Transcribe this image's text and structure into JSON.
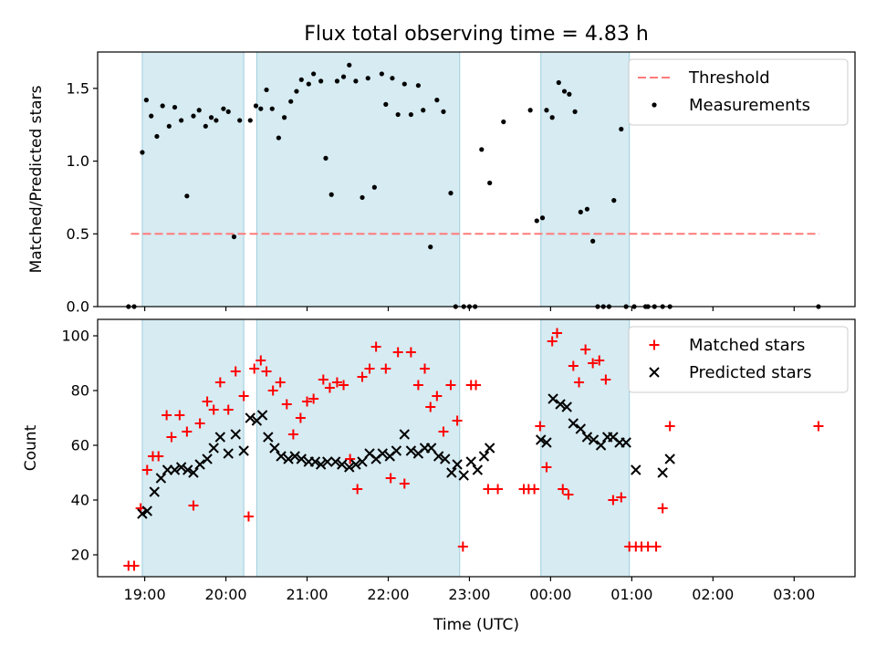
{
  "chart_data": [
    {
      "type": "scatter",
      "title": "Flux total observing time = 4.83 h",
      "xlabel": "",
      "ylabel": "Matched/Predicted stars",
      "xlim": [
        18.42,
        27.75
      ],
      "ylim": [
        0.0,
        1.75
      ],
      "yticks": [
        0.0,
        0.5,
        1.0,
        1.5
      ],
      "ytick_labels": [
        "0.0",
        "0.5",
        "1.0",
        "1.5"
      ],
      "legend_position": "top-right",
      "legend": [
        {
          "label": "Threshold",
          "kind": "dashed-line",
          "color": "#ff7a7a"
        },
        {
          "label": "Measurements",
          "kind": "dot",
          "color": "#000000"
        }
      ],
      "threshold": {
        "name": "Threshold",
        "y": 0.5,
        "x_range": [
          18.83,
          27.31
        ]
      },
      "shaded_spans": [
        [
          18.97,
          20.22
        ],
        [
          20.38,
          22.88
        ],
        [
          23.88,
          24.97
        ]
      ],
      "series": [
        {
          "name": "Measurements",
          "x": [
            18.8,
            18.87,
            18.97,
            19.02,
            19.08,
            19.15,
            19.22,
            19.3,
            19.37,
            19.45,
            19.52,
            19.6,
            19.67,
            19.75,
            19.82,
            19.88,
            19.97,
            20.03,
            20.1,
            20.17,
            20.3,
            20.37,
            20.43,
            20.5,
            20.57,
            20.65,
            20.72,
            20.8,
            20.87,
            20.93,
            21.02,
            21.08,
            21.17,
            21.23,
            21.3,
            21.37,
            21.45,
            21.52,
            21.6,
            21.68,
            21.75,
            21.83,
            21.92,
            21.97,
            22.05,
            22.12,
            22.2,
            22.28,
            22.37,
            22.43,
            22.52,
            22.6,
            22.68,
            22.77,
            22.83,
            22.93,
            23.0,
            23.07,
            23.15,
            23.25,
            23.42,
            23.75,
            23.83,
            23.9,
            23.95,
            24.02,
            24.1,
            24.17,
            24.23,
            24.3,
            24.37,
            24.45,
            24.52,
            24.58,
            24.65,
            24.72,
            24.78,
            24.87,
            24.93,
            25.03,
            25.17,
            25.2,
            25.28,
            25.38,
            25.47,
            27.3
          ],
          "y": [
            0.0,
            0.0,
            1.06,
            1.42,
            1.31,
            1.17,
            1.38,
            1.24,
            1.37,
            1.28,
            0.76,
            1.31,
            1.35,
            1.24,
            1.3,
            1.28,
            1.36,
            1.34,
            0.48,
            1.28,
            1.28,
            1.38,
            1.36,
            1.49,
            1.36,
            1.16,
            1.3,
            1.41,
            1.48,
            1.56,
            1.53,
            1.6,
            1.55,
            1.02,
            0.77,
            1.55,
            1.58,
            1.66,
            1.55,
            0.75,
            1.57,
            0.82,
            1.6,
            1.39,
            1.57,
            1.32,
            1.53,
            1.32,
            1.52,
            1.35,
            0.41,
            1.42,
            1.34,
            0.78,
            0.0,
            0.0,
            0.0,
            0.0,
            1.08,
            0.85,
            1.27,
            1.35,
            0.59,
            0.61,
            1.35,
            1.3,
            1.54,
            1.48,
            1.46,
            1.34,
            0.65,
            0.67,
            0.45,
            0.0,
            0.0,
            0.0,
            0.73,
            1.22,
            0.0,
            0.0,
            0.0,
            0.0,
            0.0,
            0.0,
            0.0,
            0.0
          ]
        }
      ]
    },
    {
      "type": "scatter",
      "title": "",
      "xlabel": "Time (UTC)",
      "ylabel": "Count",
      "xlim": [
        18.42,
        27.75
      ],
      "ylim": [
        12,
        106
      ],
      "yticks": [
        20,
        40,
        60,
        80,
        100
      ],
      "ytick_labels": [
        "20",
        "40",
        "60",
        "80",
        "100"
      ],
      "xticks": [
        19,
        20,
        21,
        22,
        23,
        24,
        25,
        26,
        27
      ],
      "xtick_labels": [
        "19:00",
        "20:00",
        "21:00",
        "22:00",
        "23:00",
        "00:00",
        "01:00",
        "02:00",
        "03:00"
      ],
      "legend_position": "top-right",
      "legend": [
        {
          "label": "Matched stars",
          "kind": "plus",
          "color": "#ff0000"
        },
        {
          "label": "Predicted stars",
          "kind": "cross",
          "color": "#000000"
        }
      ],
      "shaded_spans": [
        [
          18.97,
          20.22
        ],
        [
          20.38,
          22.88
        ],
        [
          23.88,
          24.97
        ]
      ],
      "series": [
        {
          "name": "Matched stars",
          "color": "#ff0000",
          "x": [
            18.8,
            18.87,
            18.95,
            19.03,
            19.1,
            19.17,
            19.27,
            19.33,
            19.43,
            19.52,
            19.6,
            19.68,
            19.77,
            19.85,
            19.93,
            20.03,
            20.12,
            20.22,
            20.28,
            20.35,
            20.43,
            20.5,
            20.58,
            20.67,
            20.75,
            20.83,
            20.92,
            21.0,
            21.08,
            21.2,
            21.28,
            21.37,
            21.45,
            21.53,
            21.62,
            21.68,
            21.77,
            21.85,
            21.97,
            22.03,
            22.12,
            22.2,
            22.28,
            22.37,
            22.45,
            22.52,
            22.6,
            22.68,
            22.77,
            22.85,
            22.92,
            23.02,
            23.08,
            23.23,
            23.35,
            23.67,
            23.73,
            23.8,
            23.87,
            23.95,
            24.02,
            24.08,
            24.15,
            24.22,
            24.28,
            24.35,
            24.43,
            24.52,
            24.6,
            24.68,
            24.77,
            24.87,
            24.97,
            25.05,
            25.12,
            25.2,
            25.3,
            25.38,
            25.47,
            27.3
          ],
          "y": [
            16,
            16,
            37,
            51,
            56,
            56,
            71,
            63,
            71,
            65,
            38,
            68,
            76,
            73,
            83,
            73,
            87,
            78,
            34,
            88,
            91,
            87,
            80,
            83,
            75,
            64,
            70,
            76,
            77,
            84,
            81,
            83,
            82,
            55,
            44,
            85,
            88,
            96,
            88,
            48,
            94,
            46,
            94,
            82,
            88,
            74,
            78,
            65,
            82,
            69,
            23,
            82,
            82,
            44,
            44,
            44,
            44,
            44,
            67,
            52,
            98,
            101,
            44,
            42,
            89,
            83,
            95,
            90,
            91,
            84,
            40,
            41,
            23,
            23,
            23,
            23,
            23,
            37,
            67,
            67
          ]
        },
        {
          "name": "Predicted stars",
          "color": "#000000",
          "x": [
            18.97,
            19.03,
            19.12,
            19.2,
            19.28,
            19.37,
            19.45,
            19.53,
            19.6,
            19.68,
            19.77,
            19.85,
            19.93,
            20.03,
            20.12,
            20.22,
            20.3,
            20.38,
            20.45,
            20.52,
            20.6,
            20.68,
            20.77,
            20.85,
            20.93,
            21.02,
            21.1,
            21.17,
            21.25,
            21.35,
            21.43,
            21.52,
            21.6,
            21.68,
            21.77,
            21.85,
            21.93,
            22.02,
            22.1,
            22.2,
            22.28,
            22.37,
            22.45,
            22.53,
            22.62,
            22.7,
            22.78,
            22.85,
            22.93,
            23.02,
            23.1,
            23.18,
            23.25,
            23.88,
            23.95,
            24.03,
            24.12,
            24.2,
            24.28,
            24.37,
            24.45,
            24.53,
            24.62,
            24.7,
            24.77,
            24.85,
            24.93,
            25.05,
            25.38,
            25.47
          ],
          "y": [
            35,
            36,
            43,
            48,
            51,
            51,
            52,
            51,
            50,
            53,
            55,
            59,
            63,
            57,
            64,
            58,
            70,
            69,
            71,
            63,
            59,
            56,
            55,
            56,
            55,
            54,
            54,
            53,
            54,
            54,
            53,
            52,
            53,
            54,
            57,
            55,
            57,
            56,
            58,
            64,
            58,
            57,
            59,
            59,
            56,
            55,
            50,
            53,
            49,
            54,
            51,
            56,
            59,
            62,
            61,
            77,
            75,
            74,
            68,
            66,
            63,
            62,
            60,
            63,
            63,
            61,
            61,
            51,
            50,
            55
          ]
        }
      ]
    }
  ]
}
